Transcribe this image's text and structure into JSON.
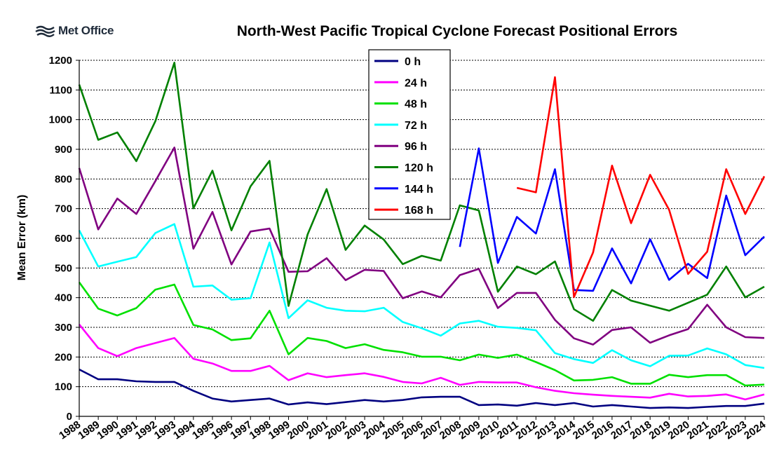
{
  "logo": {
    "text": "Met Office"
  },
  "chart_data": {
    "type": "line",
    "title": "North-West Pacific Tropical Cyclone Forecast Positional Errors",
    "xlabel": "",
    "ylabel": "Mean Error (km)",
    "ylim": [
      0,
      1200
    ],
    "yticks": [
      0,
      100,
      200,
      300,
      400,
      500,
      600,
      700,
      800,
      900,
      1000,
      1100,
      1200
    ],
    "grid": true,
    "legend_position": "top-center",
    "x": [
      "1988",
      "1989",
      "1990",
      "1991",
      "1992",
      "1993",
      "1994",
      "1995",
      "1996",
      "1997",
      "1998",
      "1999",
      "2000",
      "2001",
      "2002",
      "2003",
      "2004",
      "2005",
      "2006",
      "2007",
      "2008",
      "2009",
      "2010",
      "2011",
      "2012",
      "2013",
      "2014",
      "2015",
      "2016",
      "2017",
      "2018",
      "2019",
      "2020",
      "2021",
      "2022",
      "2023",
      "2024"
    ],
    "series": [
      {
        "name": "0 h",
        "color": "#000080",
        "values": [
          158,
          125,
          125,
          118,
          116,
          116,
          86,
          60,
          50,
          55,
          60,
          40,
          47,
          41,
          48,
          55,
          50,
          55,
          64,
          66,
          66,
          38,
          40,
          36,
          45,
          38,
          45,
          33,
          38,
          33,
          28,
          30,
          28,
          32,
          35,
          35,
          43
        ]
      },
      {
        "name": "24 h",
        "color": "#ff00ff",
        "values": [
          310,
          230,
          203,
          230,
          247,
          264,
          194,
          178,
          153,
          153,
          170,
          122,
          145,
          132,
          139,
          145,
          133,
          116,
          111,
          130,
          106,
          116,
          114,
          114,
          98,
          86,
          78,
          73,
          69,
          66,
          63,
          76,
          67,
          69,
          74,
          57,
          74
        ]
      },
      {
        "name": "48 h",
        "color": "#00e000",
        "values": [
          452,
          363,
          340,
          365,
          427,
          444,
          308,
          293,
          257,
          263,
          356,
          209,
          264,
          254,
          230,
          243,
          224,
          216,
          201,
          201,
          189,
          208,
          197,
          208,
          183,
          156,
          121,
          123,
          132,
          110,
          110,
          140,
          132,
          139,
          139,
          104,
          107
        ]
      },
      {
        "name": "72 h",
        "color": "#00ffff",
        "values": [
          627,
          505,
          521,
          537,
          618,
          648,
          437,
          441,
          393,
          398,
          586,
          331,
          391,
          366,
          356,
          354,
          366,
          318,
          297,
          272,
          313,
          322,
          302,
          298,
          290,
          213,
          193,
          180,
          223,
          189,
          169,
          204,
          205,
          229,
          209,
          173,
          163
        ]
      },
      {
        "name": "96 h",
        "color": "#800080",
        "values": [
          837,
          630,
          734,
          682,
          793,
          906,
          565,
          689,
          512,
          623,
          633,
          487,
          489,
          533,
          459,
          494,
          490,
          398,
          421,
          401,
          476,
          497,
          365,
          416,
          416,
          325,
          263,
          242,
          291,
          300,
          248,
          273,
          294,
          376,
          300,
          267,
          264
        ]
      },
      {
        "name": "120 h",
        "color": "#008000",
        "values": [
          1118,
          932,
          957,
          860,
          995,
          1192,
          701,
          828,
          627,
          775,
          861,
          372,
          613,
          766,
          561,
          643,
          596,
          513,
          541,
          525,
          711,
          694,
          420,
          505,
          479,
          522,
          361,
          322,
          426,
          390,
          373,
          356,
          383,
          410,
          505,
          401,
          437
        ]
      },
      {
        "name": "144 h",
        "color": "#0000ff",
        "values": [
          null,
          null,
          null,
          null,
          null,
          null,
          null,
          null,
          null,
          null,
          null,
          null,
          null,
          null,
          null,
          null,
          null,
          null,
          null,
          null,
          571,
          903,
          517,
          672,
          616,
          833,
          426,
          423,
          566,
          448,
          597,
          460,
          514,
          466,
          744,
          543,
          606
        ]
      },
      {
        "name": "168 h",
        "color": "#ff0000",
        "values": [
          null,
          null,
          null,
          null,
          null,
          null,
          null,
          null,
          null,
          null,
          null,
          null,
          null,
          null,
          null,
          null,
          null,
          null,
          null,
          null,
          null,
          null,
          null,
          770,
          755,
          1143,
          402,
          552,
          845,
          651,
          814,
          696,
          480,
          555,
          833,
          682,
          809
        ]
      }
    ]
  }
}
